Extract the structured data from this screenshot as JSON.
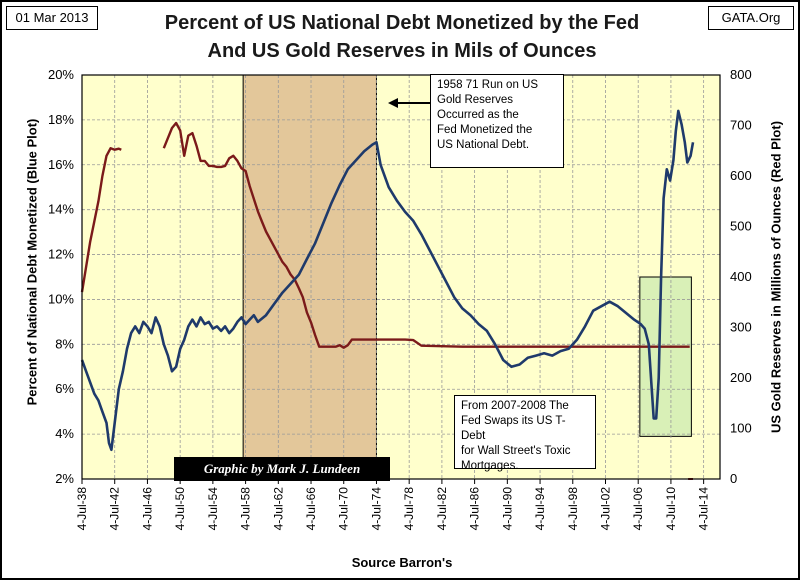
{
  "header": {
    "date": "01 Mar 2013",
    "source": "GATA.Org",
    "title_line1": "Percent of US National Debt Monetized by the Fed",
    "title_line2": "And US Gold Reserves in Mils of Ounces"
  },
  "annotations": {
    "run_note": [
      "1958  71  Run on US",
      "Gold Reserves",
      "Occurred as the",
      "Fed Monetized the",
      "US National Debt."
    ],
    "swap_note": [
      "From 2007-2008  The",
      "Fed Swaps its US T-Debt",
      "for Wall Street's Toxic",
      "Mortgages."
    ],
    "credit": "Graphic by Mark J. Lundeen"
  },
  "colors": {
    "plot_bg": "#FFFFCC",
    "highlight_1958_1974": "#E3C79A",
    "highlight_2007_2012": "#CCEBB0",
    "debt_line": "#1F3A6B",
    "gold_line": "#7B1A1A",
    "grid": "#999999"
  },
  "chart_data": {
    "type": "line",
    "title": "Percent of US National Debt Monetized by the Fed And US Gold Reserves in Mils of Ounces",
    "xlabel": "Source Barron's",
    "ylabel_left": "Percent of National Debt Monetized (Blue Plot)",
    "ylabel_right": "US Gold Reserves in Millions of Ounces (Red Plot)",
    "xlim": [
      1938.5,
      2016.5
    ],
    "ylim_left": [
      2,
      20
    ],
    "ylim_right": [
      0,
      800
    ],
    "y_left_ticks": [
      "2%",
      "4%",
      "6%",
      "8%",
      "10%",
      "12%",
      "14%",
      "16%",
      "18%",
      "20%"
    ],
    "y_right_ticks": [
      "0",
      "100",
      "200",
      "300",
      "400",
      "500",
      "600",
      "700",
      "800"
    ],
    "x_ticks": [
      {
        "year": 1938.5,
        "label": "4-Jul-38"
      },
      {
        "year": 1942.5,
        "label": "4-Jul-42"
      },
      {
        "year": 1946.5,
        "label": "4-Jul-46"
      },
      {
        "year": 1950.5,
        "label": "4-Jul-50"
      },
      {
        "year": 1954.5,
        "label": "4-Jul-54"
      },
      {
        "year": 1958.5,
        "label": "4-Jul-58"
      },
      {
        "year": 1962.5,
        "label": "4-Jul-62"
      },
      {
        "year": 1966.5,
        "label": "4-Jul-66"
      },
      {
        "year": 1970.5,
        "label": "4-Jul-70"
      },
      {
        "year": 1974.5,
        "label": "4-Jul-74"
      },
      {
        "year": 1978.5,
        "label": "4-Jul-78"
      },
      {
        "year": 1982.5,
        "label": "4-Jul-82"
      },
      {
        "year": 1986.5,
        "label": "4-Jul-86"
      },
      {
        "year": 1990.5,
        "label": "4-Jul-90"
      },
      {
        "year": 1994.5,
        "label": "4-Jul-94"
      },
      {
        "year": 1998.5,
        "label": "4-Jul-98"
      },
      {
        "year": 2002.5,
        "label": "4-Jul-02"
      },
      {
        "year": 2006.5,
        "label": "4-Jul-06"
      },
      {
        "year": 2010.5,
        "label": "4-Jul-10"
      },
      {
        "year": 2014.5,
        "label": "4-Jul-14"
      }
    ],
    "grid": true,
    "series": [
      {
        "name": "Percent of National Debt Monetized (Blue Plot)",
        "axis": "left",
        "x": [
          1938.5,
          1939,
          1939.6,
          1940,
          1940.5,
          1941,
          1941.5,
          1941.8,
          1942.1,
          1942.5,
          1943,
          1943.5,
          1944,
          1944.5,
          1945,
          1945.5,
          1946,
          1946.5,
          1947,
          1947.5,
          1948,
          1948.5,
          1949,
          1949.5,
          1950,
          1950.5,
          1951,
          1951.5,
          1952,
          1952.5,
          1953,
          1953.5,
          1954,
          1954.5,
          1955,
          1955.5,
          1956,
          1956.5,
          1957,
          1957.5,
          1958,
          1958.5,
          1959,
          1959.5,
          1960,
          1961,
          1962,
          1963,
          1964,
          1965,
          1966,
          1967,
          1968,
          1969,
          1970,
          1971,
          1972,
          1973,
          1974,
          1974.5,
          1975,
          1976,
          1977,
          1978,
          1979,
          1980,
          1981,
          1982,
          1983,
          1984,
          1985,
          1986,
          1987,
          1988,
          1989,
          1990,
          1991,
          1992,
          1993,
          1994,
          1995,
          1996,
          1997,
          1998,
          1999,
          2000,
          2001,
          2002,
          2003,
          2004,
          2005,
          2006,
          2006.8,
          2007.3,
          2007.8,
          2008.1,
          2008.4,
          2008.7,
          2009.0,
          2009.3,
          2009.6,
          2010.0,
          2010.4,
          2010.8,
          2011.1,
          2011.4,
          2011.8,
          2012.2,
          2012.5,
          2012.9,
          2013.2
        ],
        "y": [
          7.3,
          6.8,
          6.2,
          5.8,
          5.5,
          5.0,
          4.5,
          3.6,
          3.3,
          4.5,
          6.0,
          6.8,
          7.8,
          8.5,
          8.8,
          8.5,
          9.0,
          8.8,
          8.5,
          9.2,
          8.8,
          8.0,
          7.5,
          6.8,
          7.0,
          7.8,
          8.2,
          8.8,
          9.1,
          8.8,
          9.2,
          8.9,
          9.0,
          8.7,
          8.8,
          8.6,
          8.8,
          8.5,
          8.7,
          9.0,
          9.2,
          8.9,
          9.1,
          9.3,
          9.0,
          9.3,
          9.8,
          10.3,
          10.7,
          11.1,
          11.8,
          12.5,
          13.4,
          14.3,
          15.1,
          15.8,
          16.2,
          16.6,
          16.9,
          17.0,
          16.0,
          15.0,
          14.4,
          13.9,
          13.5,
          12.9,
          12.2,
          11.5,
          10.8,
          10.1,
          9.6,
          9.3,
          8.9,
          8.6,
          8.0,
          7.3,
          7.0,
          7.1,
          7.4,
          7.5,
          7.6,
          7.5,
          7.7,
          7.8,
          8.2,
          8.8,
          9.5,
          9.7,
          9.9,
          9.7,
          9.4,
          9.1,
          8.9,
          8.7,
          8.0,
          6.3,
          4.7,
          4.7,
          6.5,
          11.0,
          14.5,
          15.8,
          15.3,
          16.2,
          17.5,
          18.4,
          17.8,
          17.0,
          16.1,
          16.4,
          17.0
        ]
      },
      {
        "name": "US Gold Reserves in Millions of Ounces (Red Plot)",
        "axis": "right",
        "x": [
          1938.5,
          1939,
          1939.5,
          1940,
          1940.5,
          1941,
          1941.5,
          1942,
          1942.5,
          1943,
          1943.3,
          null,
          1948.5,
          1949,
          1949.5,
          1950,
          1950.5,
          1951,
          1951.5,
          1952,
          1952.5,
          1953,
          1953.5,
          1954,
          1954.5,
          1955,
          1955.5,
          1956,
          1956.5,
          1957,
          1957.5,
          1958,
          1958.5,
          1959,
          1959.5,
          1960,
          1960.5,
          1961,
          1961.5,
          1962,
          1962.5,
          1963,
          1963.5,
          1964,
          1964.5,
          1965,
          1965.5,
          1966,
          1966.5,
          1967,
          1967.5,
          1968,
          1968.5,
          1969,
          1969.5,
          1970,
          1970.5,
          1971,
          1971.5,
          1972,
          1972.5,
          1973,
          1973.5,
          1974,
          1975,
          1976,
          1977,
          1978,
          1979,
          1980,
          1985,
          1990,
          1995,
          2000,
          2005,
          2010,
          2012.8
        ],
        "y": [
          370,
          420,
          470,
          510,
          550,
          600,
          640,
          655,
          652,
          654,
          652,
          null,
          655,
          675,
          695,
          705,
          690,
          640,
          680,
          685,
          660,
          630,
          630,
          620,
          620,
          618,
          618,
          620,
          635,
          640,
          630,
          615,
          610,
          580,
          555,
          530,
          510,
          490,
          475,
          460,
          445,
          430,
          420,
          405,
          395,
          378,
          360,
          330,
          310,
          285,
          262,
          262,
          262,
          262,
          262,
          265,
          260,
          265,
          276,
          276,
          276,
          276,
          276,
          276,
          276,
          276,
          276,
          276,
          275,
          264,
          262,
          262,
          262,
          262,
          262,
          262,
          262
        ]
      }
    ],
    "highlight_regions": [
      {
        "label": "1958-1971 run on gold",
        "x": [
          1958.2,
          1974.5
        ],
        "ylim_left": [
          2,
          20
        ]
      },
      {
        "label": "2007-2008 T-Debt swap",
        "x": [
          2006.7,
          2013.0
        ],
        "ylim_left": [
          3.9,
          11
        ]
      }
    ]
  },
  "axis_labels": {
    "x": "Source Barron's",
    "y_left": "Percent of National Debt Monetized (Blue Plot)",
    "y_right": "US Gold Reserves in Millions of Ounces (Red Plot)"
  }
}
